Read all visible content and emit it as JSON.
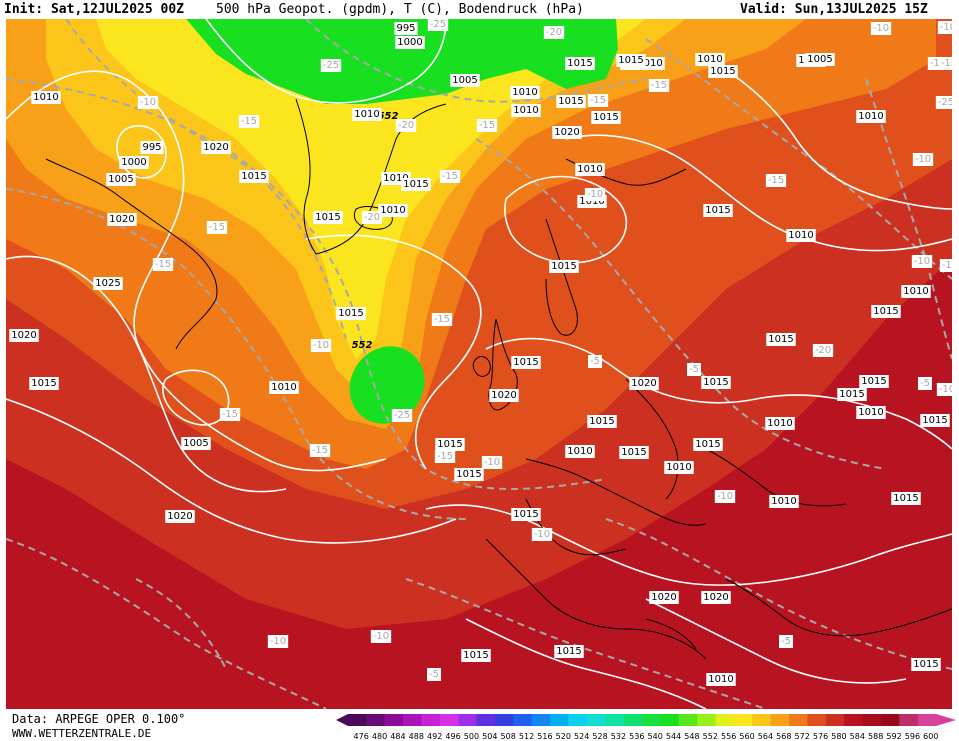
{
  "header": {
    "init": "Init: Sat,12JUL2025 00Z",
    "title": "500 hPa Geopot. (gpdm), T (C), Bodendruck (hPa)",
    "valid": "Valid: Sun,13JUL2025 15Z"
  },
  "footer": {
    "data_source": "Data: ARPEGE OPER 0.100°",
    "website": "WWW.WETTERZENTRALE.DE"
  },
  "colors": {
    "bg_red": "#b81320",
    "dark_red": "#a80c1c",
    "mid_red": "#cc3020",
    "orange_red": "#e0501c",
    "orange": "#f07a18",
    "light_orange": "#f8a018",
    "yellow_orange": "#fbc51a",
    "yellow": "#fbe51e",
    "green": "#18e020",
    "isobar": "#ffffff",
    "temp_contour": "#a8a8a8",
    "coastline": "#000000"
  },
  "scale": {
    "values": [
      "476",
      "480",
      "484",
      "488",
      "492",
      "496",
      "500",
      "504",
      "508",
      "512",
      "516",
      "520",
      "524",
      "528",
      "532",
      "536",
      "540",
      "544",
      "548",
      "552",
      "556",
      "560",
      "564",
      "568",
      "572",
      "576",
      "580",
      "584",
      "588",
      "592",
      "596",
      "600"
    ],
    "colors": [
      "#4a0a5a",
      "#6a0a7a",
      "#8a0a9a",
      "#aa14b8",
      "#c820d4",
      "#d830e8",
      "#a030e8",
      "#6030e0",
      "#3040e0",
      "#2060f0",
      "#1088f0",
      "#00b0f0",
      "#10d0f0",
      "#10e0d0",
      "#10e0a0",
      "#10e070",
      "#18e040",
      "#18e020",
      "#58e818",
      "#98f018",
      "#e0f018",
      "#fbe51e",
      "#fbc51a",
      "#f8a018",
      "#f07a18",
      "#e0501c",
      "#cc3020",
      "#b81320",
      "#a80c1c",
      "#980a1a",
      "#b8306a",
      "#d8409a"
    ]
  },
  "map": {
    "geopot_labels": [
      "552",
      "552",
      "552"
    ],
    "isobar_labels": [
      "995",
      "1000",
      "1005",
      "1010",
      "1000",
      "995",
      "1005",
      "1010",
      "1010",
      "1015",
      "1020",
      "1015",
      "1010",
      "1010",
      "1015",
      "1010",
      "1010",
      "1010",
      "1015",
      "1020",
      "1015",
      "1010",
      "1015",
      "1020",
      "1025",
      "1020",
      "1015",
      "1005",
      "1010",
      "1015",
      "1020",
      "1015",
      "1020",
      "1015",
      "1015",
      "1010",
      "1015",
      "1010",
      "1015",
      "1010",
      "1010",
      "1015",
      "1015",
      "1010",
      "1015",
      "1010",
      "1015",
      "1015",
      "1010",
      "1015",
      "1015",
      "1015",
      "1015",
      "1010",
      "1010",
      "1015",
      "1020",
      "1020",
      "1020",
      "1015",
      "1015",
      "1015",
      "1010",
      "1015",
      "1005",
      "1010",
      "1015",
      "1010",
      "1015"
    ],
    "temp_labels": [
      "-10",
      "-15",
      "-15",
      "-15",
      "-20",
      "-25",
      "-25",
      "-20",
      "-15",
      "-15",
      "-20",
      "-25",
      "-15",
      "-10",
      "-15",
      "-15",
      "-15",
      "-10",
      "-10",
      "-10",
      "-10",
      "-15",
      "-10",
      "-25",
      "-20",
      "-15",
      "-15",
      "-15",
      "-10",
      "-10",
      "-10",
      "-10",
      "-10",
      "-5",
      "-5",
      "-5",
      "-5",
      "-5",
      "-15",
      "-10",
      "-10"
    ]
  }
}
